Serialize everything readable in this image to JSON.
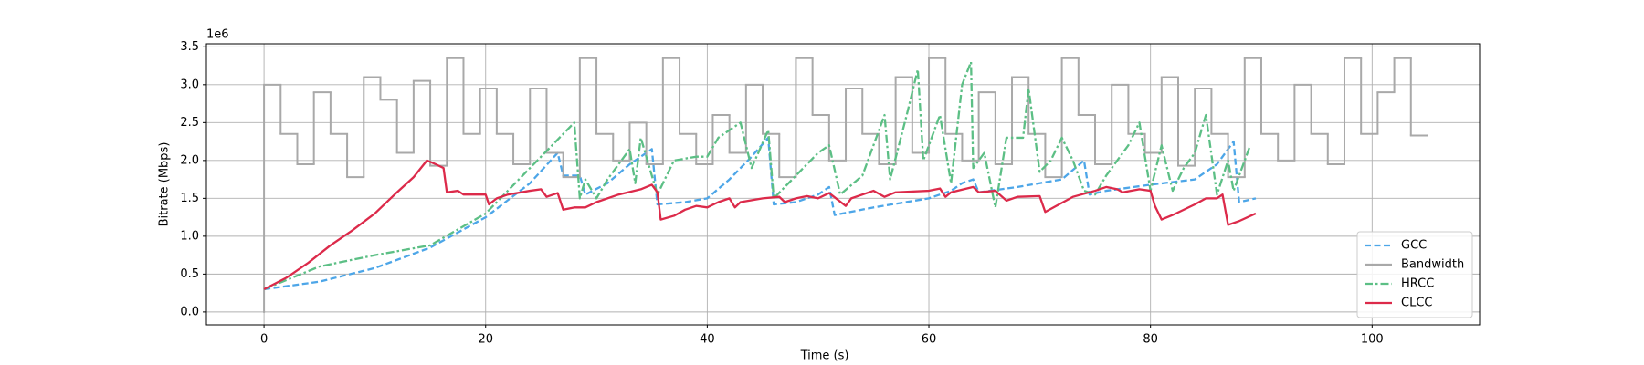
{
  "chart_data": {
    "type": "line",
    "xlabel": "Time (s)",
    "ylabel": "Bitrate (Mbps)",
    "y_offset_label": "1e6",
    "xlim": [
      -5.2,
      109.7
    ],
    "ylim": [
      -0.17,
      3.54
    ],
    "xticks": [
      0,
      20,
      40,
      60,
      80,
      100
    ],
    "yticks": [
      {
        "value": 0,
        "label": "0.0"
      },
      {
        "value": 0.5,
        "label": "0.5"
      },
      {
        "value": 1,
        "label": "1.0"
      },
      {
        "value": 1.5,
        "label": "1.5"
      },
      {
        "value": 2,
        "label": "2.0"
      },
      {
        "value": 2.5,
        "label": "2.5"
      },
      {
        "value": 3,
        "label": "3.0"
      },
      {
        "value": 3.5,
        "label": "3.5"
      }
    ],
    "grid": true,
    "legend": "lower right",
    "series": [
      {
        "name": "GCC",
        "color": "#4da6e8",
        "linestyle": "dashed",
        "x": [
          0,
          5,
          10,
          15,
          20,
          24,
          26.5,
          27,
          28.5,
          29,
          31,
          33,
          35,
          35.5,
          38,
          40,
          42,
          44,
          45.5,
          46,
          48,
          50,
          51,
          51.5,
          55,
          60,
          62,
          63,
          64,
          64.5,
          68,
          70,
          72,
          74,
          74.5,
          76,
          80,
          84,
          86,
          87.5,
          88,
          89.5
        ],
        "values": [
          0.3,
          0.4,
          0.58,
          0.85,
          1.25,
          1.7,
          2.1,
          1.8,
          1.8,
          1.55,
          1.7,
          1.95,
          2.15,
          1.42,
          1.45,
          1.5,
          1.75,
          2.05,
          2.3,
          1.42,
          1.45,
          1.55,
          1.65,
          1.28,
          1.38,
          1.5,
          1.6,
          1.7,
          1.75,
          1.58,
          1.65,
          1.7,
          1.75,
          2.0,
          1.55,
          1.6,
          1.68,
          1.75,
          1.95,
          2.25,
          1.45,
          1.5
        ]
      },
      {
        "name": "Bandwidth",
        "color": "#a9a9a9",
        "linestyle": "solid",
        "drawstyle": "steps-post",
        "x": [
          0,
          0,
          1.5,
          3,
          4.5,
          6,
          7.5,
          9,
          10.5,
          12,
          13.5,
          15,
          16.5,
          18,
          19.5,
          21,
          22.5,
          24,
          25.5,
          27,
          28.5,
          30,
          31.5,
          33,
          34.5,
          36,
          37.5,
          39,
          40.5,
          42,
          43.5,
          45,
          46.5,
          48,
          49.5,
          51,
          52.5,
          54,
          55.5,
          57,
          58.5,
          60,
          61.5,
          63,
          64.5,
          66,
          67.5,
          69,
          70.5,
          72,
          73.5,
          75,
          76.5,
          78,
          79.5,
          81,
          82.5,
          84,
          85.5,
          87,
          88.5,
          90,
          91.5,
          93,
          94.5,
          96,
          97.5,
          99,
          100.5,
          102,
          103.5,
          105
        ],
        "values": [
          0,
          3.0,
          2.35,
          1.95,
          2.9,
          2.35,
          1.78,
          3.1,
          2.8,
          2.1,
          3.05,
          1.93,
          3.35,
          2.35,
          2.95,
          2.35,
          1.95,
          2.95,
          2.1,
          1.78,
          3.35,
          2.35,
          2.0,
          2.5,
          1.95,
          3.35,
          2.35,
          1.95,
          2.6,
          2.1,
          3.0,
          2.35,
          1.78,
          3.35,
          2.6,
          2.0,
          2.95,
          2.35,
          1.95,
          3.1,
          2.1,
          3.35,
          2.35,
          2.0,
          2.9,
          1.95,
          3.1,
          2.35,
          1.78,
          3.35,
          2.6,
          1.95,
          3.0,
          2.35,
          2.1,
          3.1,
          1.93,
          2.95,
          2.35,
          1.78,
          3.35,
          2.35,
          2.0,
          3.0,
          2.35,
          1.95,
          3.35,
          2.35,
          2.9,
          3.35,
          2.33,
          2.33
        ]
      },
      {
        "name": "HRCC",
        "color": "#5cbf85",
        "linestyle": "dashdot",
        "x": [
          0,
          5,
          10,
          15,
          20,
          23,
          26,
          28,
          28.5,
          29,
          30,
          31,
          33,
          33.5,
          34,
          35.5,
          37,
          39,
          40,
          41,
          43,
          44,
          45.5,
          46,
          48,
          50,
          51,
          52,
          54,
          56,
          56.5,
          58,
          59,
          59.5,
          61,
          62,
          63,
          63.8,
          64,
          65,
          66,
          67,
          68.5,
          69,
          70,
          71,
          72,
          73,
          74,
          75,
          76,
          78,
          79,
          80,
          81,
          82,
          83,
          84,
          85,
          86,
          87,
          87.5,
          89
        ],
        "values": [
          0.3,
          0.6,
          0.75,
          0.88,
          1.3,
          1.75,
          2.2,
          2.5,
          1.5,
          1.75,
          1.5,
          1.75,
          2.15,
          1.7,
          2.3,
          1.55,
          2.0,
          2.05,
          2.05,
          2.3,
          2.5,
          1.9,
          2.4,
          1.5,
          1.8,
          2.1,
          2.2,
          1.55,
          1.8,
          2.6,
          1.75,
          2.6,
          3.2,
          2.0,
          2.6,
          1.7,
          3.0,
          3.3,
          1.9,
          2.1,
          1.38,
          2.3,
          2.3,
          2.95,
          1.85,
          2.0,
          2.3,
          2.0,
          1.6,
          1.55,
          1.8,
          2.2,
          2.5,
          1.6,
          2.2,
          1.6,
          1.9,
          2.1,
          2.6,
          1.55,
          2.0,
          1.6,
          2.2
        ]
      },
      {
        "name": "CLCC",
        "color": "#dc2a4a",
        "linestyle": "solid",
        "x": [
          0,
          2,
          4,
          6,
          8,
          10,
          12,
          13.5,
          14.7,
          15.5,
          16.2,
          16.5,
          17.5,
          18,
          19,
          20,
          20.3,
          21,
          22,
          24,
          25,
          25.5,
          26.5,
          27,
          28,
          29,
          30,
          32,
          34,
          35,
          35.5,
          35.8,
          37,
          38,
          39,
          40,
          41,
          42,
          42.5,
          43,
          45,
          46.5,
          47,
          48,
          49,
          50,
          51,
          52.5,
          53,
          55,
          56,
          57,
          60,
          61,
          61.5,
          62,
          64,
          64.5,
          66,
          67,
          68,
          70,
          70.5,
          71.5,
          73,
          75,
          76,
          77,
          77.5,
          79,
          80,
          80.4,
          81,
          82,
          84,
          85,
          86,
          86.5,
          87,
          88,
          89.5
        ],
        "values": [
          0.3,
          0.45,
          0.65,
          0.88,
          1.08,
          1.3,
          1.58,
          1.78,
          2.0,
          1.95,
          1.9,
          1.58,
          1.6,
          1.55,
          1.55,
          1.55,
          1.42,
          1.5,
          1.55,
          1.6,
          1.62,
          1.52,
          1.57,
          1.35,
          1.38,
          1.38,
          1.45,
          1.55,
          1.62,
          1.68,
          1.58,
          1.22,
          1.27,
          1.35,
          1.4,
          1.38,
          1.45,
          1.5,
          1.38,
          1.45,
          1.5,
          1.52,
          1.45,
          1.5,
          1.53,
          1.5,
          1.57,
          1.4,
          1.5,
          1.6,
          1.52,
          1.58,
          1.6,
          1.63,
          1.52,
          1.58,
          1.65,
          1.58,
          1.6,
          1.47,
          1.52,
          1.53,
          1.32,
          1.4,
          1.52,
          1.6,
          1.65,
          1.62,
          1.58,
          1.62,
          1.6,
          1.4,
          1.22,
          1.28,
          1.42,
          1.5,
          1.5,
          1.55,
          1.15,
          1.2,
          1.3
        ]
      }
    ]
  }
}
